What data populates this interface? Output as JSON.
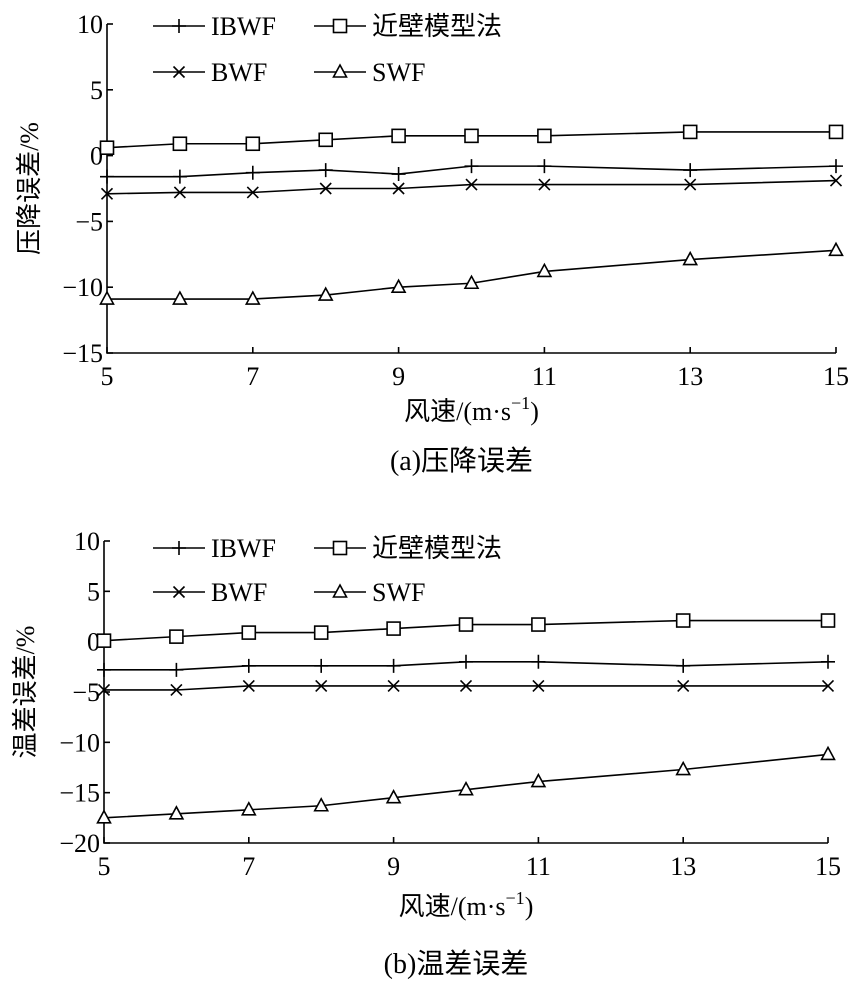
{
  "chart_data": [
    {
      "type": "line",
      "title": "",
      "caption": "(a)压降误差",
      "xlabel": "风速/(m·s⁻¹)",
      "ylabel": "压降误差/%",
      "x": [
        5,
        6,
        7,
        8,
        9,
        10,
        11,
        13,
        15
      ],
      "xlim": [
        5,
        15
      ],
      "ylim": [
        -15,
        10
      ],
      "xticks": [
        "5",
        "7",
        "9",
        "11",
        "13",
        "15"
      ],
      "yticks": [
        "10",
        "5",
        "0",
        "-5",
        "-10",
        "-15"
      ],
      "legend_position": "top",
      "series": [
        {
          "name": "IBWF",
          "marker": "plus",
          "values": [
            -1.6,
            -1.6,
            -1.3,
            -1.1,
            -1.4,
            -0.8,
            -0.8,
            -1.1,
            -0.8
          ]
        },
        {
          "name": "近壁模型法",
          "marker": "square",
          "values": [
            0.6,
            0.9,
            0.9,
            1.2,
            1.5,
            1.5,
            1.5,
            1.8,
            1.8
          ]
        },
        {
          "name": "BWF",
          "marker": "x",
          "values": [
            -2.9,
            -2.8,
            -2.8,
            -2.5,
            -2.5,
            -2.2,
            -2.2,
            -2.2,
            -1.9
          ]
        },
        {
          "name": "SWF",
          "marker": "triangle",
          "values": [
            -10.9,
            -10.9,
            -10.9,
            -10.6,
            -10.0,
            -9.7,
            -8.8,
            -7.9,
            -7.2
          ]
        }
      ]
    },
    {
      "type": "line",
      "title": "",
      "caption": "(b)温差误差",
      "xlabel": "风速/(m·s⁻¹)",
      "ylabel": "温差误差/%",
      "x": [
        5,
        6,
        7,
        8,
        9,
        10,
        11,
        13,
        15
      ],
      "xlim": [
        5,
        15
      ],
      "ylim": [
        -20,
        10
      ],
      "xticks": [
        "5",
        "7",
        "9",
        "11",
        "13",
        "15"
      ],
      "yticks": [
        "10",
        "5",
        "0",
        "-5",
        "-10",
        "-15",
        "-20"
      ],
      "legend_position": "top",
      "series": [
        {
          "name": "IBWF",
          "marker": "plus",
          "values": [
            -2.8,
            -2.8,
            -2.4,
            -2.4,
            -2.4,
            -2.0,
            -2.0,
            -2.4,
            -2.0
          ]
        },
        {
          "name": "近壁模型法",
          "marker": "square",
          "values": [
            0.1,
            0.5,
            0.9,
            0.9,
            1.3,
            1.7,
            1.7,
            2.1,
            2.1
          ]
        },
        {
          "name": "BWF",
          "marker": "x",
          "values": [
            -4.8,
            -4.8,
            -4.4,
            -4.4,
            -4.4,
            -4.4,
            -4.4,
            -4.4,
            -4.4
          ]
        },
        {
          "name": "SWF",
          "marker": "triangle",
          "values": [
            -17.5,
            -17.1,
            -16.7,
            -16.3,
            -15.5,
            -14.7,
            -13.9,
            -12.7,
            -11.2
          ]
        }
      ]
    }
  ]
}
